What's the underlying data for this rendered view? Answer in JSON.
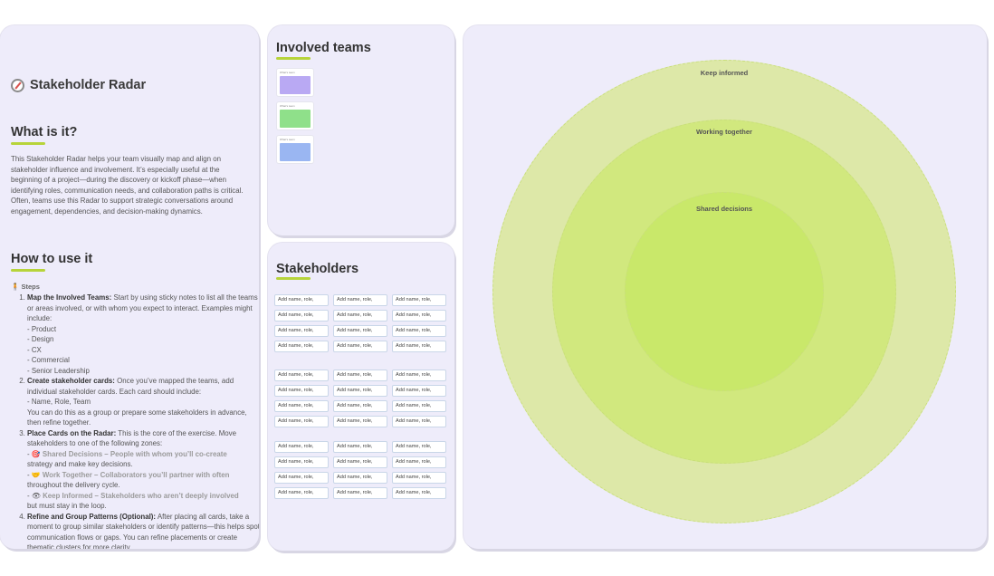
{
  "app": {
    "title": "Stakeholder Radar",
    "icon": "compass-icon"
  },
  "what": {
    "heading": "What is it?",
    "para1": "This Stakeholder Radar helps your team visually map and align on stakeholder influence and involvement. It’s especially useful at the beginning of a project—during the discovery or kickoff phase—when identifying roles, communication needs, and collaboration paths is critical.",
    "para2": "Often, teams use this Radar to support strategic conversations around engagement, dependencies, and decision-making dynamics."
  },
  "howto": {
    "heading": "How to use it",
    "steps_label": "Steps",
    "steps_icon": "person-icon",
    "step1": {
      "title": "Map the Involved Teams:",
      "text": "Start by using sticky notes to list all the teams or areas involved, or with whom you expect to interact. Examples might include:",
      "examples": [
        "- Product",
        "- Design",
        "- CX",
        "- Commercial",
        "- Senior Leadership"
      ]
    },
    "step2": {
      "title": "Create stakeholder cards:",
      "text": "Once you’ve mapped the teams, add individual stakeholder cards. Each card should include:",
      "fields": "- Name, Role, Team",
      "text2": "You can do this as a group or prepare some stakeholders in advance, then refine together."
    },
    "step3": {
      "title": "Place Cards on the Radar:",
      "text": "This is the core of the exercise. Move stakeholders to one of the following zones:",
      "zone1": "Shared Decisions – People with whom you’ll co-create",
      "zone1_tail": "strategy and make key decisions.",
      "zone2": "Work Together – Collaborators you’ll partner with often",
      "zone2_tail": "throughout the delivery cycle.",
      "zone3": "Keep Informed – Stakeholders who aren’t deeply involved",
      "zone3_tail": "but must stay in the loop."
    },
    "step4": {
      "title": "Refine and Group Patterns (Optional):",
      "text": "After placing all cards, take a moment to group similar stakeholders or identify patterns—this helps spot communication flows or gaps. You can refine placements or create thematic clusters for more clarity."
    }
  },
  "teams": {
    "title": "Involved teams",
    "cards": [
      {
        "label": "What's team",
        "color": "#b9a9f3"
      },
      {
        "label": "What's team",
        "color": "#8fe08a"
      },
      {
        "label": "What's team",
        "color": "#9ab6f2"
      }
    ]
  },
  "stakeholders": {
    "title": "Stakeholders",
    "card_text": "Add name, role,"
  },
  "radar": {
    "rings": [
      {
        "label": "Keep informed",
        "color": "#dde8a8"
      },
      {
        "label": "Working together",
        "color": "#d1e87e"
      },
      {
        "label": "Shared decisions",
        "color": "#c9e86a"
      }
    ]
  }
}
